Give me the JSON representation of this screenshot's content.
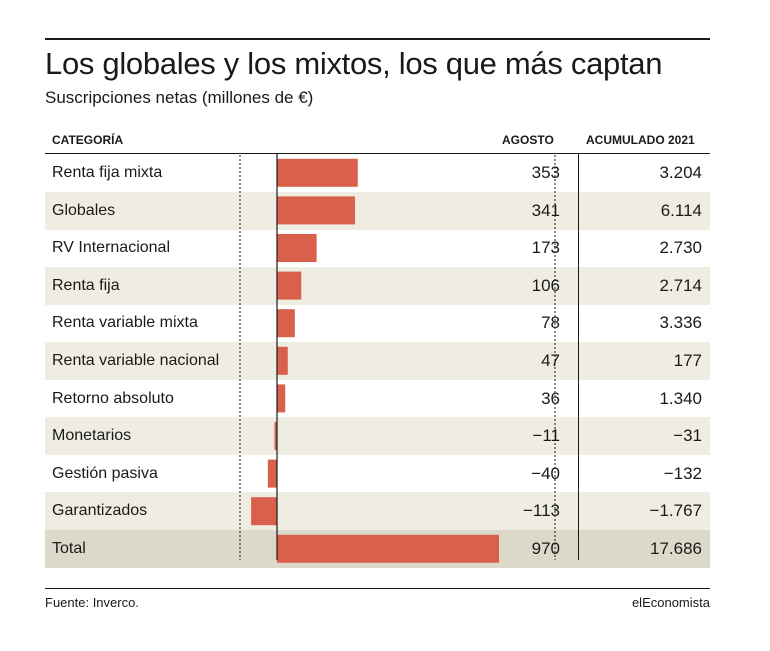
{
  "title": "Los globales y los mixtos, los que más captan",
  "subtitle": "Suscripciones netas (millones de €)",
  "headers": {
    "categoria": "CATEGORÍA",
    "agosto": "AGOSTO",
    "acumulado": "ACUMULADO 2021"
  },
  "rows": [
    {
      "categoria": "Renta fija mixta",
      "agosto_label": "353",
      "acumulado": "3.204"
    },
    {
      "categoria": "Globales",
      "agosto_label": "341",
      "acumulado": "6.114"
    },
    {
      "categoria": "RV Internacional",
      "agosto_label": "173",
      "acumulado": "2.730"
    },
    {
      "categoria": "Renta fija",
      "agosto_label": "106",
      "acumulado": "2.714"
    },
    {
      "categoria": "Renta variable mixta",
      "agosto_label": "78",
      "acumulado": "3.336"
    },
    {
      "categoria": "Renta variable nacional",
      "agosto_label": "47",
      "acumulado": "177"
    },
    {
      "categoria": "Retorno absoluto",
      "agosto_label": "36",
      "acumulado": "1.340"
    },
    {
      "categoria": "Monetarios",
      "agosto_label": "−11",
      "acumulado": "−31"
    },
    {
      "categoria": "Gestión pasiva",
      "agosto_label": "−40",
      "acumulado": "−132"
    },
    {
      "categoria": "Garantizados",
      "agosto_label": "−113",
      "acumulado": "−1.767"
    },
    {
      "categoria": "Total",
      "agosto_label": "970",
      "acumulado": "17.686"
    }
  ],
  "source": "Fuente: Inverco.",
  "brand": "elEconomista",
  "colors": {
    "bar": "#d9604a",
    "row_shade": "#efede2",
    "total_shade": "#dcd9cb",
    "text": "#1a1a1a"
  },
  "chart_data": {
    "type": "bar",
    "orientation": "horizontal",
    "title": "Los globales y los mixtos, los que más captan",
    "subtitle": "Suscripciones netas (millones de €)",
    "categories": [
      "Renta fija mixta",
      "Globales",
      "RV Internacional",
      "Renta fija",
      "Renta variable mixta",
      "Renta variable nacional",
      "Retorno absoluto",
      "Monetarios",
      "Gestión pasiva",
      "Garantizados",
      "Total"
    ],
    "series": [
      {
        "values": [
          353,
          341,
          173,
          106,
          78,
          47,
          36,
          -11,
          -40,
          -113,
          970
        ]
      }
    ],
    "accumulated_2021": [
      3204,
      6114,
      2730,
      2714,
      3336,
      177,
      1340,
      -31,
      -132,
      -1767,
      17686
    ]
  }
}
